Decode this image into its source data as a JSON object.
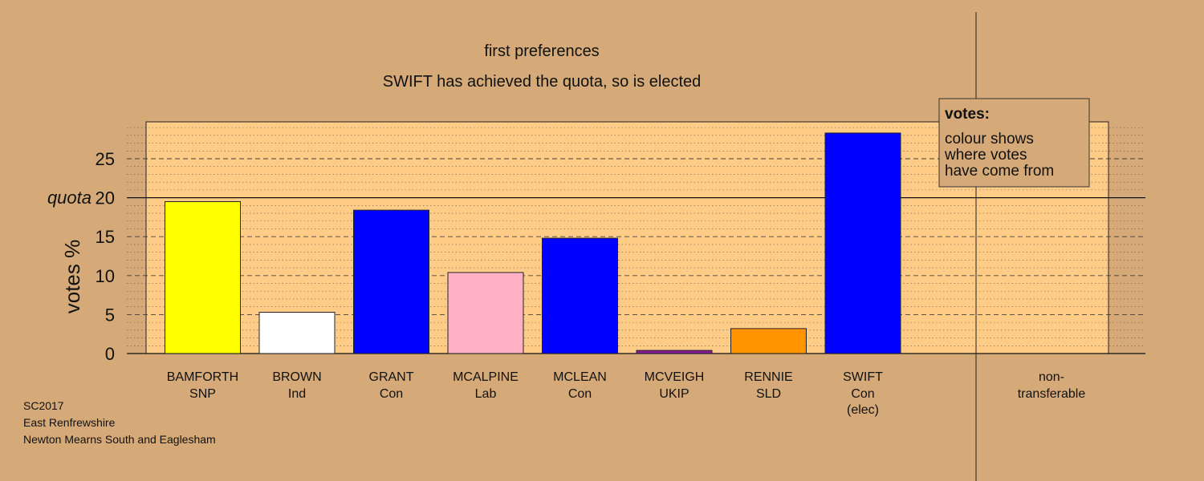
{
  "chart_data": {
    "type": "bar",
    "title": "first preferences",
    "subtitle": "SWIFT has achieved the quota, so is elected",
    "ylabel": "votes %",
    "xlabel": "",
    "ylim": [
      0,
      29.5
    ],
    "yticks": [
      0,
      5,
      10,
      15,
      20,
      25
    ],
    "ytick_labels": [
      "0",
      "5",
      "10",
      "15",
      "20",
      "25"
    ],
    "quota_label": "quota",
    "quota": 20,
    "grid": true,
    "categories": [
      {
        "name": "BAMFORTH",
        "party": "SNP",
        "extra": ""
      },
      {
        "name": "BROWN",
        "party": "Ind",
        "extra": ""
      },
      {
        "name": "GRANT",
        "party": "Con",
        "extra": ""
      },
      {
        "name": "MCALPINE",
        "party": "Lab",
        "extra": ""
      },
      {
        "name": "MCLEAN",
        "party": "Con",
        "extra": ""
      },
      {
        "name": "MCVEIGH",
        "party": "UKIP",
        "extra": ""
      },
      {
        "name": "RENNIE",
        "party": "SLD",
        "extra": ""
      },
      {
        "name": "SWIFT",
        "party": "Con",
        "extra": "(elec)"
      }
    ],
    "values": [
      19.5,
      5.3,
      18.4,
      10.4,
      14.8,
      0.4,
      3.2,
      28.3
    ],
    "colors": [
      "#FFFF00",
      "#FFFFFF",
      "#0000FF",
      "#FFB0C4",
      "#0000FF",
      "#8B1A9B",
      "#FF9400",
      "#0000FF"
    ],
    "nontransferable": {
      "label_line1": "non-",
      "label_line2": "transferable",
      "value": 0
    },
    "legend": {
      "position": "top-right",
      "title": "votes:",
      "lines": [
        "colour shows",
        "where votes",
        "have come from"
      ]
    }
  },
  "footer": {
    "line1": "SC2017",
    "line2": "East Renfrewshire",
    "line3": "Newton Mearns South and Eaglesham"
  },
  "colors": {
    "background": "#D5AA78",
    "plot_background": "#FFCC88"
  }
}
